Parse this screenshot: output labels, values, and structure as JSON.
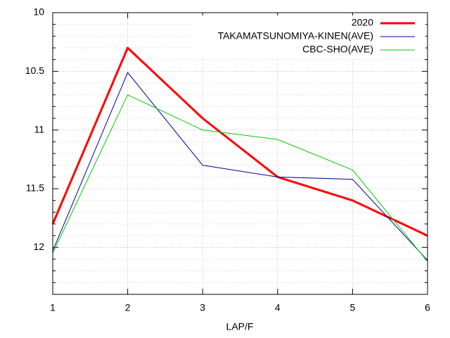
{
  "chart_data": {
    "type": "line",
    "x": [
      1,
      2,
      3,
      4,
      5,
      6
    ],
    "xlabel": "LAP/F",
    "xlim": [
      1,
      6
    ],
    "xticks": [
      1,
      2,
      3,
      4,
      5,
      6
    ],
    "ylim": [
      10,
      12.4
    ],
    "yticks": [
      10,
      10.5,
      11,
      11.5,
      12
    ],
    "yminorticks": [
      10.1,
      10.2,
      10.3,
      10.4,
      10.6,
      10.7,
      10.8,
      10.9,
      11.1,
      11.2,
      11.3,
      11.4,
      11.6,
      11.7,
      11.8,
      11.9,
      12.1,
      12.2,
      12.3
    ],
    "y_reversed": true,
    "grid": true,
    "legend": "top-right",
    "series": [
      {
        "name": "2020",
        "color": "#ff0000",
        "width": 3,
        "values": [
          11.8,
          10.3,
          10.9,
          11.4,
          11.6,
          11.9
        ]
      },
      {
        "name": "TAKAMATSUNOMIYA-KINEN(AVE)",
        "color": "#000099",
        "width": 1,
        "values": [
          12.03,
          10.51,
          11.3,
          11.4,
          11.42,
          12.11
        ]
      },
      {
        "name": "CBC-SHO(AVE)",
        "color": "#00cc00",
        "width": 1,
        "values": [
          12.05,
          10.7,
          11.0,
          11.08,
          11.34,
          12.12
        ]
      }
    ]
  }
}
